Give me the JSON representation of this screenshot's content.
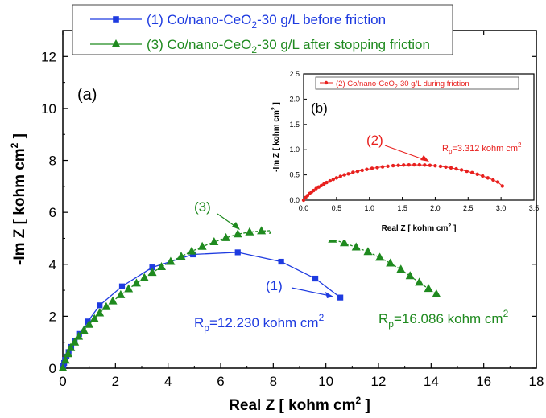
{
  "chart_data": [
    {
      "type": "scatter",
      "panel_label": "(a)",
      "xlabel": "Real Z [ kohm cm",
      "xlabel_sup": "2",
      "xlabel_end": " ]",
      "ylabel": "-Im Z [ kohm cm",
      "ylabel_sup": "2",
      "ylabel_end": " ]",
      "xlim": [
        0,
        18
      ],
      "ylim": [
        0,
        13
      ],
      "xticks": [
        "0",
        "2",
        "4",
        "6",
        "8",
        "10",
        "12",
        "14",
        "16",
        "18"
      ],
      "yticks": [
        "0",
        "2",
        "4",
        "6",
        "8",
        "10",
        "12"
      ],
      "grid": false,
      "legend_position": "top",
      "series": [
        {
          "name_pre": "(1) Co/nano-CeO",
          "name_sub": "2",
          "name_post": "-30 g/L before friction",
          "marker": "square",
          "color": "#1e3be0",
          "x": [
            0.0,
            0.02,
            0.05,
            0.09,
            0.14,
            0.22,
            0.32,
            0.45,
            0.62,
            0.95,
            1.4,
            2.25,
            3.4,
            4.95,
            6.65,
            8.3,
            9.6,
            10.55
          ],
          "y": [
            0.0,
            0.1,
            0.2,
            0.32,
            0.45,
            0.62,
            0.82,
            1.05,
            1.32,
            1.8,
            2.42,
            3.15,
            3.88,
            4.38,
            4.46,
            4.1,
            3.45,
            2.72
          ]
        },
        {
          "name_pre": "(3) Co/nano-CeO",
          "name_sub": "2",
          "name_post": "-30 g/L after stopping friction",
          "marker": "triangle",
          "color": "#1f8a1f",
          "x": [
            0.0,
            0.1,
            0.2,
            0.3,
            0.45,
            0.6,
            0.8,
            1.0,
            1.2,
            1.4,
            1.65,
            1.9,
            2.2,
            2.5,
            2.8,
            3.1,
            3.4,
            3.75,
            4.1,
            4.5,
            4.9,
            5.3,
            5.75,
            6.2,
            6.65,
            7.1,
            7.55,
            8.0,
            8.45,
            8.9,
            9.35,
            9.8,
            10.25,
            10.7,
            11.15,
            11.6,
            12.05,
            12.45,
            12.85,
            13.2,
            13.55,
            13.9,
            14.2
          ],
          "y": [
            0.0,
            0.3,
            0.55,
            0.78,
            1.0,
            1.22,
            1.45,
            1.68,
            1.9,
            2.12,
            2.36,
            2.58,
            2.82,
            3.05,
            3.27,
            3.48,
            3.68,
            3.9,
            4.1,
            4.3,
            4.5,
            4.68,
            4.86,
            5.02,
            5.16,
            5.24,
            5.28,
            5.3,
            5.29,
            5.24,
            5.18,
            5.08,
            4.96,
            4.82,
            4.66,
            4.48,
            4.26,
            4.04,
            3.8,
            3.55,
            3.3,
            3.06,
            2.85
          ]
        }
      ],
      "annotations": [
        {
          "label": "(1)",
          "rp_pre": "R",
          "rp_sub": "p",
          "rp_mid": "=12.230 kohm cm",
          "rp_sup": "2",
          "color": "#1e3be0"
        },
        {
          "label": "(3)",
          "rp_pre": "R",
          "rp_sub": "p",
          "rp_mid": "=16.086 kohm cm",
          "rp_sup": "2",
          "color": "#1f8a1f"
        }
      ]
    },
    {
      "type": "scatter",
      "panel_label": "(b)",
      "xlabel": "Real Z [ kohm cm",
      "xlabel_sup": "2",
      "xlabel_end": " ]",
      "ylabel": "-Im Z [ kohm cm",
      "ylabel_sup": "2",
      "ylabel_end": " ]",
      "xlim": [
        0,
        3.5
      ],
      "ylim": [
        0,
        2.5
      ],
      "xticks": [
        "0.0",
        "0.5",
        "1.0",
        "1.5",
        "2.0",
        "2.5",
        "3.0",
        "3.5"
      ],
      "yticks": [
        "0.0",
        "0.5",
        "1.0",
        "1.5",
        "2.0",
        "2.5"
      ],
      "grid": false,
      "legend_position": "top",
      "series": [
        {
          "name_pre": "(2) Co/nano-CeO",
          "name_sub": "2",
          "name_post": "-30 g/L during friction",
          "marker": "circle",
          "color": "#e8201e",
          "x": [
            0.0,
            0.03,
            0.06,
            0.09,
            0.12,
            0.15,
            0.19,
            0.23,
            0.27,
            0.31,
            0.35,
            0.4,
            0.45,
            0.5,
            0.56,
            0.62,
            0.68,
            0.75,
            0.82,
            0.89,
            0.96,
            1.04,
            1.12,
            1.2,
            1.28,
            1.36,
            1.44,
            1.52,
            1.6,
            1.68,
            1.76,
            1.84,
            1.92,
            2.0,
            2.08,
            2.16,
            2.24,
            2.32,
            2.4,
            2.48,
            2.56,
            2.64,
            2.72,
            2.8,
            2.88,
            2.95,
            3.02
          ],
          "y": [
            0.0,
            0.05,
            0.09,
            0.13,
            0.16,
            0.19,
            0.23,
            0.26,
            0.29,
            0.32,
            0.35,
            0.38,
            0.41,
            0.44,
            0.47,
            0.5,
            0.52,
            0.55,
            0.57,
            0.59,
            0.61,
            0.63,
            0.645,
            0.66,
            0.672,
            0.683,
            0.69,
            0.695,
            0.698,
            0.7,
            0.699,
            0.696,
            0.69,
            0.681,
            0.67,
            0.656,
            0.64,
            0.62,
            0.598,
            0.572,
            0.544,
            0.512,
            0.478,
            0.44,
            0.4,
            0.36,
            0.28
          ]
        }
      ],
      "annotations": [
        {
          "label": "(2)",
          "rp_pre": "R",
          "rp_sub": "p",
          "rp_mid": "=3.312 kohm cm",
          "rp_sup": "2",
          "color": "#e8201e"
        }
      ]
    }
  ]
}
